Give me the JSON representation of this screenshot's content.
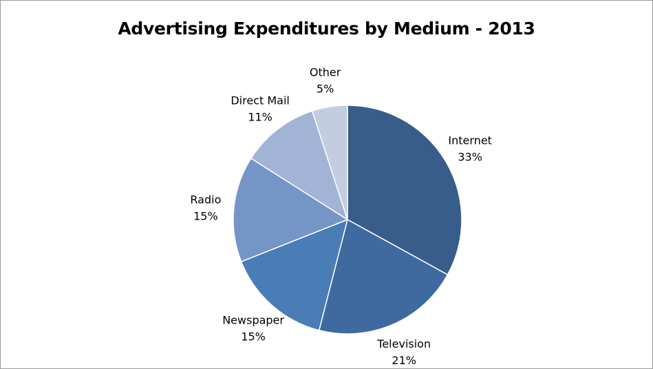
{
  "chart_data": {
    "type": "pie",
    "title": "Advertising Expenditures by Medium - 2013",
    "categories": [
      "Internet",
      "Television",
      "Newspaper",
      "Radio",
      "Direct Mail",
      "Other"
    ],
    "values": [
      33,
      21,
      15,
      15,
      11,
      5
    ],
    "value_labels": [
      "33%",
      "21%",
      "15%",
      "15%",
      "11%",
      "5%"
    ],
    "colors": [
      "#385d8a",
      "#3e6aa0",
      "#4a7cb6",
      "#7595c6",
      "#a1b4d6",
      "#c2cde2"
    ],
    "start_angle_deg": 0,
    "direction": "clockwise",
    "legend": "none",
    "labels_position": "outside"
  }
}
